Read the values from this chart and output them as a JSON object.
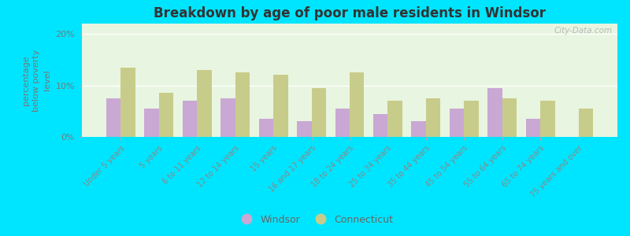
{
  "title": "Breakdown by age of poor male residents in Windsor",
  "ylabel": "percentage\nbelow poverty\nlevel",
  "categories": [
    "Under 5 years",
    "5 years",
    "6 to 11 years",
    "12 to 14 years",
    "15 years",
    "16 and 17 years",
    "18 to 24 years",
    "25 to 34 years",
    "35 to 44 years",
    "45 to 54 years",
    "55 to 64 years",
    "65 to 74 years",
    "75 years and over"
  ],
  "windsor_values": [
    7.5,
    5.5,
    7.0,
    7.5,
    3.5,
    3.0,
    5.5,
    4.5,
    3.0,
    5.5,
    9.5,
    3.5,
    0
  ],
  "connecticut_values": [
    13.5,
    8.5,
    13.0,
    12.5,
    12.0,
    9.5,
    12.5,
    7.0,
    7.5,
    7.0,
    7.5,
    7.0,
    5.5
  ],
  "windsor_color": "#c9a8d4",
  "connecticut_color": "#c8cc8a",
  "plot_bg_top": "#e8f5e0",
  "plot_bg_bottom": "#f0f8e8",
  "outer_background": "#00e5ff",
  "yticks": [
    0,
    10,
    20
  ],
  "ylim": [
    0,
    22
  ],
  "watermark": "City-Data.com"
}
